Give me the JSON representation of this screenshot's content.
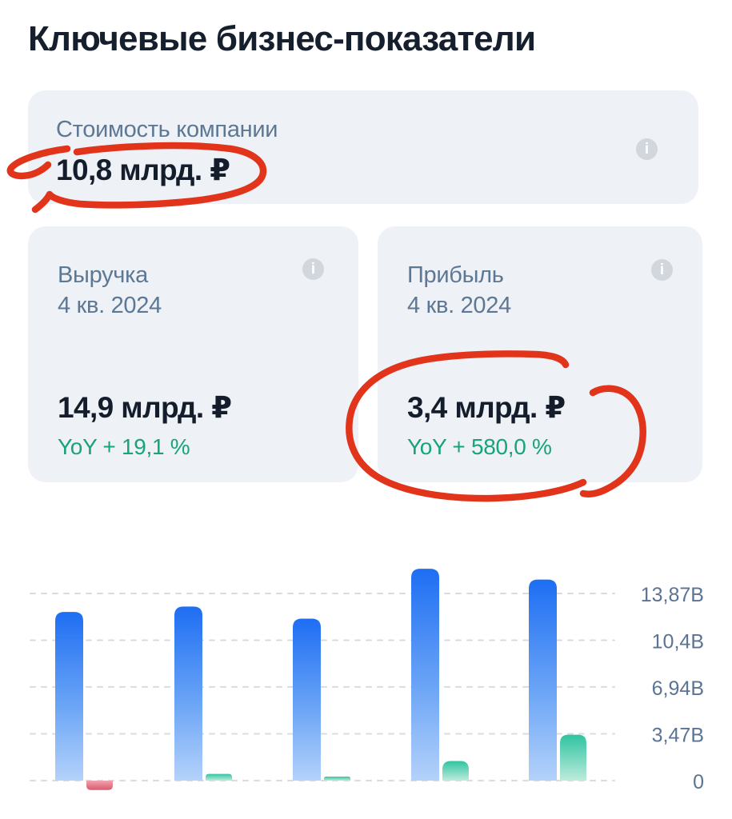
{
  "page": {
    "title": "Ключевые бизнес-показатели"
  },
  "cards": {
    "company": {
      "label": "Стоимость компании",
      "value": "10,8 млрд. ₽"
    },
    "revenue": {
      "label": "Выручка",
      "period": "4 кв. 2024",
      "value": "14,9 млрд. ₽",
      "yoy": "YoY + 19,1 %"
    },
    "profit": {
      "label": "Прибыль",
      "period": "4 кв. 2024",
      "value": "3,4 млрд. ₽",
      "yoy": "YoY + 580,0 %"
    }
  },
  "icons": {
    "info_glyph": "i"
  },
  "annotations": {
    "kind": "hand-drawn-red-circles",
    "targets": [
      "company-value",
      "profit-value-and-yoy"
    ],
    "color": "#e2341b",
    "stroke_width": 8.5
  },
  "colors": {
    "page_bg": "#ffffff",
    "card_bg": "#eef1f6",
    "title_text": "#161f2e",
    "muted_text": "#5d7894",
    "value_text": "#141d2b",
    "positive_text": "#18a478",
    "axis_text": "#5b7394",
    "gridline": "#d8dce2",
    "info_icon_bg": "#d2d6dd",
    "info_icon_glyph": "#ffffff"
  },
  "chart_data": {
    "type": "bar",
    "title": "",
    "legend": "none",
    "grid": "dotted-horizontal",
    "x_tick_labels": "none-visible",
    "values_estimated_from_pixels": true,
    "unit_suffix": "B",
    "ylim": [
      -0.9,
      16.2
    ],
    "series": [
      {
        "name": "Выручка",
        "values": [
          12.5,
          12.9,
          12.0,
          15.7,
          14.9
        ],
        "color_top": "#1e6ef3",
        "color_mid": "#6aa4f6",
        "color_bottom": "#b4d2fa"
      },
      {
        "name": "Прибыль",
        "values": [
          -0.7,
          0.5,
          0.3,
          1.45,
          3.4
        ],
        "color_top": "#2fc4a0",
        "color_bottom": "#bdebdc",
        "negative_color_top": "#f0a3ad",
        "negative_color_bottom": "#d8596d"
      }
    ],
    "y_ticks": [
      {
        "label": "13,87B",
        "value": 13.87
      },
      {
        "label": "10,4B",
        "value": 10.4
      },
      {
        "label": "6,94B",
        "value": 6.94
      },
      {
        "label": "3,47B",
        "value": 3.47
      },
      {
        "label": "0",
        "value": 0
      }
    ]
  }
}
